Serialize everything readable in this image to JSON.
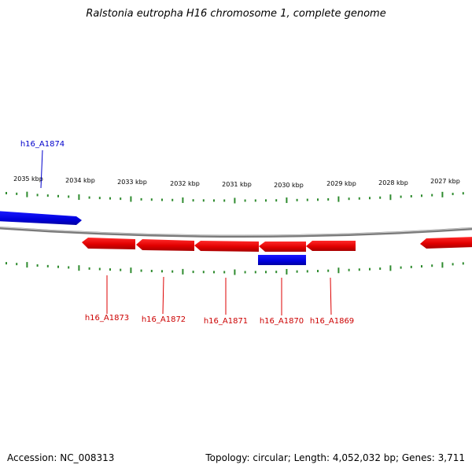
{
  "header": {
    "title": "Ralstonia eutropha H16 chromosome 1, complete genome"
  },
  "footer": {
    "accession": "Accession: NC_008313",
    "stats": "Topology: circular; Length: 4,052,032 bp; Genes: 3,711"
  },
  "scale": {
    "ticks": [
      "2035 kbp",
      "2034 kbp",
      "2033 kbp",
      "2032 kbp",
      "2031 kbp",
      "2030 kbp",
      "2029 kbp",
      "2028 kbp",
      "2027 kbp"
    ]
  },
  "genes": {
    "forward_labels": [
      "h16_A1874"
    ],
    "reverse_labels": [
      "h16_A1873",
      "h16_A1872",
      "h16_A1871",
      "h16_A1870",
      "h16_A1869"
    ]
  },
  "colors": {
    "forward_strand": "#0000cc",
    "reverse_strand": "#dd0000",
    "backbone": "#808080",
    "ticks": "#2e8b2e"
  }
}
